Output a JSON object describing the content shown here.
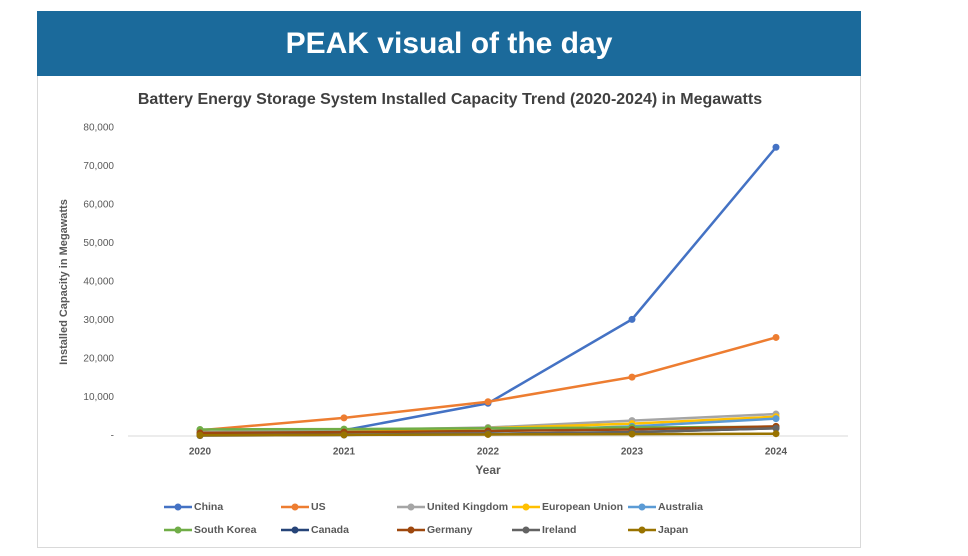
{
  "banner": "PEAK visual of the day",
  "chart_data": {
    "type": "line",
    "title": "Battery Energy Storage System Installed Capacity Trend (2020-2024) in Megawatts",
    "xlabel": "Year",
    "ylabel": "Installed Capacity in Megawatts",
    "categories": [
      "2020",
      "2021",
      "2022",
      "2023",
      "2024"
    ],
    "ylim": [
      0,
      80000
    ],
    "yticks": [
      {
        "value": 0,
        "label": "-"
      },
      {
        "value": 10000,
        "label": "10,000"
      },
      {
        "value": 20000,
        "label": "20,000"
      },
      {
        "value": 30000,
        "label": "30,000"
      },
      {
        "value": 40000,
        "label": "40,000"
      },
      {
        "value": 50000,
        "label": "50,000"
      },
      {
        "value": 60000,
        "label": "60,000"
      },
      {
        "value": 70000,
        "label": "70,000"
      },
      {
        "value": 80000,
        "label": "80,000"
      }
    ],
    "grid": false,
    "series": [
      {
        "name": "China",
        "color": "#4472c4",
        "values": [
          800,
          1500,
          8500,
          30300,
          75000
        ]
      },
      {
        "name": "US",
        "color": "#ed7d31",
        "values": [
          1500,
          4700,
          8900,
          15300,
          25600
        ]
      },
      {
        "name": "United Kingdom",
        "color": "#a5a5a5",
        "values": [
          1000,
          1500,
          2200,
          4000,
          5700
        ]
      },
      {
        "name": "European Union",
        "color": "#ffc000",
        "values": [
          500,
          1000,
          2000,
          3200,
          5000
        ]
      },
      {
        "name": "Australia",
        "color": "#5b9bd5",
        "values": [
          300,
          600,
          1200,
          2500,
          4500
        ]
      },
      {
        "name": "South Korea",
        "color": "#70ad47",
        "values": [
          1700,
          1800,
          2000,
          2200,
          2400
        ]
      },
      {
        "name": "Canada",
        "color": "#264478",
        "values": [
          200,
          300,
          500,
          1000,
          2000
        ]
      },
      {
        "name": "Germany",
        "color": "#9e480e",
        "values": [
          800,
          1000,
          1300,
          1700,
          2500
        ]
      },
      {
        "name": "Ireland",
        "color": "#636363",
        "values": [
          100,
          300,
          600,
          1000,
          2000
        ]
      },
      {
        "name": "Japan",
        "color": "#997300",
        "values": [
          200,
          300,
          400,
          500,
          600
        ]
      }
    ]
  }
}
